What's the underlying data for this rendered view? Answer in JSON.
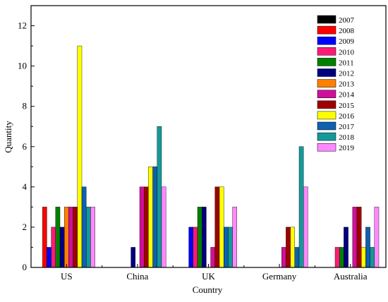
{
  "chart_data": {
    "type": "bar",
    "title": "",
    "xlabel": "Country",
    "ylabel": "Quantity",
    "ylim": [
      0,
      13
    ],
    "yticks": [
      0,
      2,
      4,
      6,
      8,
      10,
      12
    ],
    "grid": false,
    "legend_position": "top-right",
    "categories": [
      "US",
      "China",
      "UK",
      "Germany",
      "Australia"
    ],
    "series": [
      {
        "name": "2007",
        "color": "#000000",
        "values": [
          0,
          0,
          0,
          0,
          0
        ]
      },
      {
        "name": "2008",
        "color": "#ff0000",
        "values": [
          3,
          0,
          0,
          0,
          0
        ]
      },
      {
        "name": "2009",
        "color": "#0000ff",
        "values": [
          1,
          0,
          2,
          0,
          0
        ]
      },
      {
        "name": "2010",
        "color": "#ff1a75",
        "values": [
          2,
          0,
          2,
          0,
          1
        ]
      },
      {
        "name": "2011",
        "color": "#008000",
        "values": [
          3,
          0,
          3,
          0,
          1
        ]
      },
      {
        "name": "2012",
        "color": "#000080",
        "values": [
          2,
          1,
          3,
          0,
          2
        ]
      },
      {
        "name": "2013",
        "color": "#ff8000",
        "values": [
          3,
          0,
          0,
          0,
          0
        ]
      },
      {
        "name": "2014",
        "color": "#d0109a",
        "values": [
          3,
          4,
          1,
          1,
          3
        ]
      },
      {
        "name": "2015",
        "color": "#a00000",
        "values": [
          3,
          4,
          4,
          2,
          3
        ]
      },
      {
        "name": "2016",
        "color": "#ffff00",
        "values": [
          11,
          5,
          4,
          2,
          1
        ]
      },
      {
        "name": "2017",
        "color": "#1060b0",
        "values": [
          4,
          5,
          2,
          1,
          2
        ]
      },
      {
        "name": "2018",
        "color": "#14999a",
        "values": [
          3,
          7,
          2,
          6,
          1
        ]
      },
      {
        "name": "2019",
        "color": "#ff88ff",
        "values": [
          3,
          4,
          3,
          4,
          3
        ]
      }
    ]
  }
}
